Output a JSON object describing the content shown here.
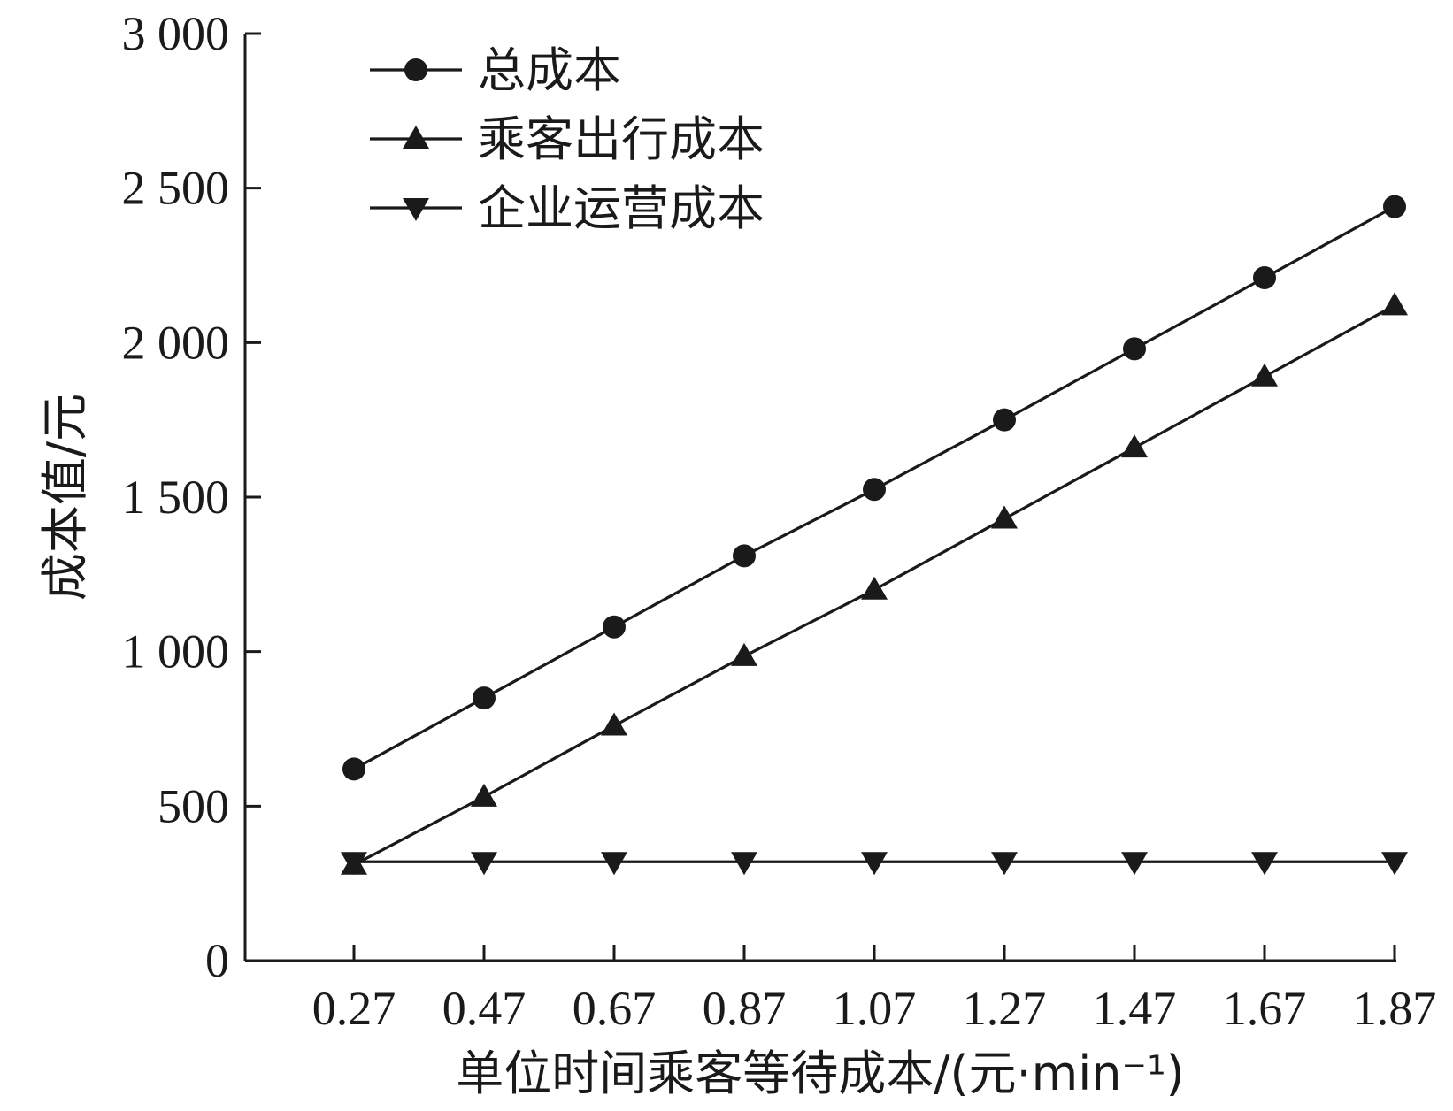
{
  "chart_data": {
    "type": "line",
    "xlabel": "单位时间乘客等待成本/(元·min⁻¹)",
    "ylabel": "成本值/元",
    "ylim": [
      0,
      3000
    ],
    "yticks": [
      0,
      500,
      1000,
      1500,
      2000,
      2500,
      3000
    ],
    "ytick_labels": [
      "0",
      "500",
      "1 000",
      "1 500",
      "2 000",
      "2 500",
      "3 000"
    ],
    "categories": [
      "0.27",
      "0.47",
      "0.67",
      "0.87",
      "1.07",
      "1.27",
      "1.47",
      "1.67",
      "1.87"
    ],
    "x": [
      0.27,
      0.47,
      0.67,
      0.87,
      1.07,
      1.27,
      1.47,
      1.67,
      1.87
    ],
    "legend_position": "top-left",
    "grid": false,
    "series": [
      {
        "name": "总成本",
        "marker": "circle",
        "values": [
          620,
          850,
          1080,
          1310,
          1525,
          1750,
          1980,
          2210,
          2440
        ]
      },
      {
        "name": "乘客出行成本",
        "marker": "triangle-up",
        "values": [
          310,
          530,
          760,
          985,
          1200,
          1430,
          1660,
          1890,
          2120
        ]
      },
      {
        "name": "企业运营成本",
        "marker": "triangle-down",
        "values": [
          320,
          320,
          320,
          320,
          320,
          320,
          320,
          320,
          320
        ]
      }
    ]
  }
}
